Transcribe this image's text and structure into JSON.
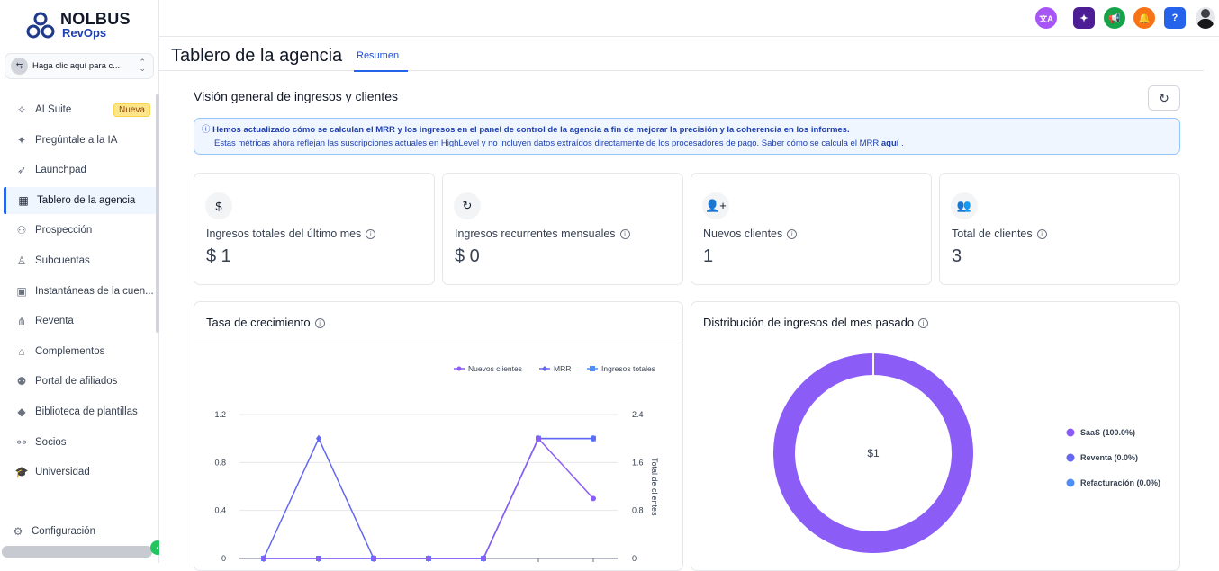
{
  "brand": {
    "name": "NOLBUS",
    "sub": "RevOps"
  },
  "account_switcher": {
    "label": "Haga clic aquí para c..."
  },
  "sidebar": {
    "items": [
      {
        "label": "AI Suite",
        "icon": "sparkle-icon",
        "badge": "Nueva"
      },
      {
        "label": "Pregúntale a la IA",
        "icon": "sparkles-icon"
      },
      {
        "label": "Launchpad",
        "icon": "rocket-icon"
      },
      {
        "label": "Tablero de la agencia",
        "icon": "dashboard-icon",
        "active": true
      },
      {
        "label": "Prospección",
        "icon": "users-icon"
      },
      {
        "label": "Subcuentas",
        "icon": "user-icon"
      },
      {
        "label": "Instantáneas de la cuen...",
        "icon": "image-icon"
      },
      {
        "label": "Reventa",
        "icon": "network-icon"
      },
      {
        "label": "Complementos",
        "icon": "bag-icon"
      },
      {
        "label": "Portal de afiliados",
        "icon": "team-icon"
      },
      {
        "label": "Biblioteca de plantillas",
        "icon": "shapes-icon"
      },
      {
        "label": "Socios",
        "icon": "handshake-icon"
      },
      {
        "label": "Universidad",
        "icon": "graduation-cap-icon"
      }
    ],
    "settings": "Configuración"
  },
  "topbar": {
    "icons": [
      {
        "name": "translate-icon",
        "color": "#a855f7",
        "glyph": "文A"
      },
      {
        "name": "ai-icon",
        "color": "#4c1d95",
        "glyph": "✦"
      },
      {
        "name": "megaphone-icon",
        "color": "#16a34a",
        "glyph": "📢"
      },
      {
        "name": "bell-icon",
        "color": "#f97316",
        "glyph": "🔔"
      },
      {
        "name": "help-icon",
        "color": "#2563eb",
        "glyph": "?"
      }
    ]
  },
  "page": {
    "title": "Tablero de la agencia",
    "tab": "Resumen",
    "section": "Visión general de ingresos y clientes"
  },
  "notice": {
    "line1": "Hemos actualizado cómo se calculan el MRR y los ingresos en el panel de control de la agencia a fin de mejorar la precisión y la coherencia en los informes.",
    "line2": "Estas métricas ahora reflejan las suscripciones actuales en HighLevel y no incluyen datos extraídos directamente de los procesadores de pago. Saber cómo se calcula el MRR",
    "link": "aquí"
  },
  "cards": [
    {
      "label": "Ingresos totales del último mes",
      "value": "$ 1",
      "icon": "$"
    },
    {
      "label": "Ingresos recurrentes mensuales",
      "value": "$ 0",
      "icon": "↻"
    },
    {
      "label": "Nuevos clientes",
      "value": "1",
      "icon": "👤+"
    },
    {
      "label": "Total de clientes",
      "value": "3",
      "icon": "👥"
    }
  ],
  "growth": {
    "title": "Tasa de crecimiento"
  },
  "distribution": {
    "title": "Distribución de ingresos del mes pasado",
    "center": "$1"
  },
  "chart_data": [
    {
      "type": "line",
      "title": "Tasa de crecimiento",
      "ylabel_right": "Total de clientes",
      "ylim": [
        0,
        1.2
      ],
      "ylim_right": [
        0,
        2.4
      ],
      "yticks": [
        "0",
        "0.4",
        "0.8",
        "1.2"
      ],
      "yticks_right": [
        "0",
        "0.8",
        "1.6",
        "2.4"
      ],
      "legend": "top-right",
      "series": [
        {
          "name": "Nuevos clientes",
          "color": "#8b5cf6",
          "values": [
            0,
            0,
            0,
            0,
            0,
            1,
            0.5
          ]
        },
        {
          "name": "MRR",
          "color": "#6366f1",
          "values": [
            0,
            1,
            0,
            0,
            0,
            1,
            1
          ]
        },
        {
          "name": "Ingresos totales",
          "color": "#4f8ef7",
          "values": [
            0,
            0,
            0,
            0,
            0,
            1,
            1
          ]
        }
      ]
    },
    {
      "type": "pie",
      "title": "Distribución de ingresos del mes pasado",
      "categories": [
        "SaaS (100.0%)",
        "Reventa (0.0%)",
        "Refacturación (0.0%)"
      ],
      "values": [
        100,
        0,
        0
      ],
      "colors": [
        "#8b5cf6",
        "#6366f1",
        "#4f8ef7"
      ]
    }
  ]
}
